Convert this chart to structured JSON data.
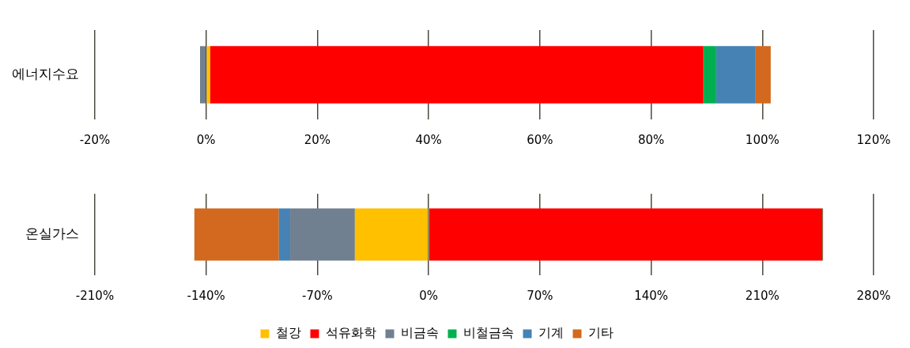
{
  "chart_data": [
    {
      "type": "bar",
      "orientation": "horizontal",
      "stacked": true,
      "categories": [
        "에너지수요"
      ],
      "series": [
        {
          "color": "#ffc000",
          "values": [
            0.7
          ]
        },
        {
          "color": "#ff0000",
          "values": [
            88.7
          ]
        },
        {
          "color": "#708090",
          "values": [
            -1.1
          ]
        },
        {
          "color": "#00b050",
          "values": [
            2.3
          ]
        },
        {
          "color": "#4682b4",
          "values": [
            7.1
          ]
        },
        {
          "color": "#d2691e",
          "values": [
            2.7
          ]
        }
      ],
      "xlim": [
        -20,
        120
      ],
      "xticks": [
        {
          "value": -20,
          "label": "-20%"
        },
        {
          "value": 0,
          "label": "0%"
        },
        {
          "value": 20,
          "label": "20%"
        },
        {
          "value": 40,
          "label": "40%"
        },
        {
          "value": 60,
          "label": "60%"
        },
        {
          "value": 80,
          "label": "80%"
        },
        {
          "value": 100,
          "label": "100%"
        },
        {
          "value": 120,
          "label": "120%"
        }
      ],
      "grid": "x",
      "legend": false
    },
    {
      "type": "bar",
      "orientation": "horizontal",
      "stacked": true,
      "categories": [
        "온실가스"
      ],
      "series": [
        {
          "name": "철강",
          "color": "#ffc000",
          "values": [
            -46.4
          ]
        },
        {
          "name": "석유화학",
          "color": "#ff0000",
          "values": [
            247.8
          ]
        },
        {
          "name": "비금속",
          "color": "#708090",
          "values": [
            -40.7
          ]
        },
        {
          "name": "비철금속",
          "color": "#00b050",
          "values": [
            0.4
          ]
        },
        {
          "name": "기계",
          "color": "#4682b4",
          "values": [
            -7.1
          ]
        },
        {
          "name": "기타",
          "color": "#d2691e",
          "values": [
            -53.2
          ]
        }
      ],
      "xlim": [
        -210,
        280
      ],
      "xticks": [
        {
          "value": -210,
          "label": "-210%"
        },
        {
          "value": -140,
          "label": "-140%"
        },
        {
          "value": -70,
          "label": "-70%"
        },
        {
          "value": 0,
          "label": "0%"
        },
        {
          "value": 70,
          "label": "70%"
        },
        {
          "value": 140,
          "label": "140%"
        },
        {
          "value": 210,
          "label": "210%"
        },
        {
          "value": 280,
          "label": "280%"
        }
      ],
      "grid": "x",
      "legend": "bottom"
    }
  ]
}
